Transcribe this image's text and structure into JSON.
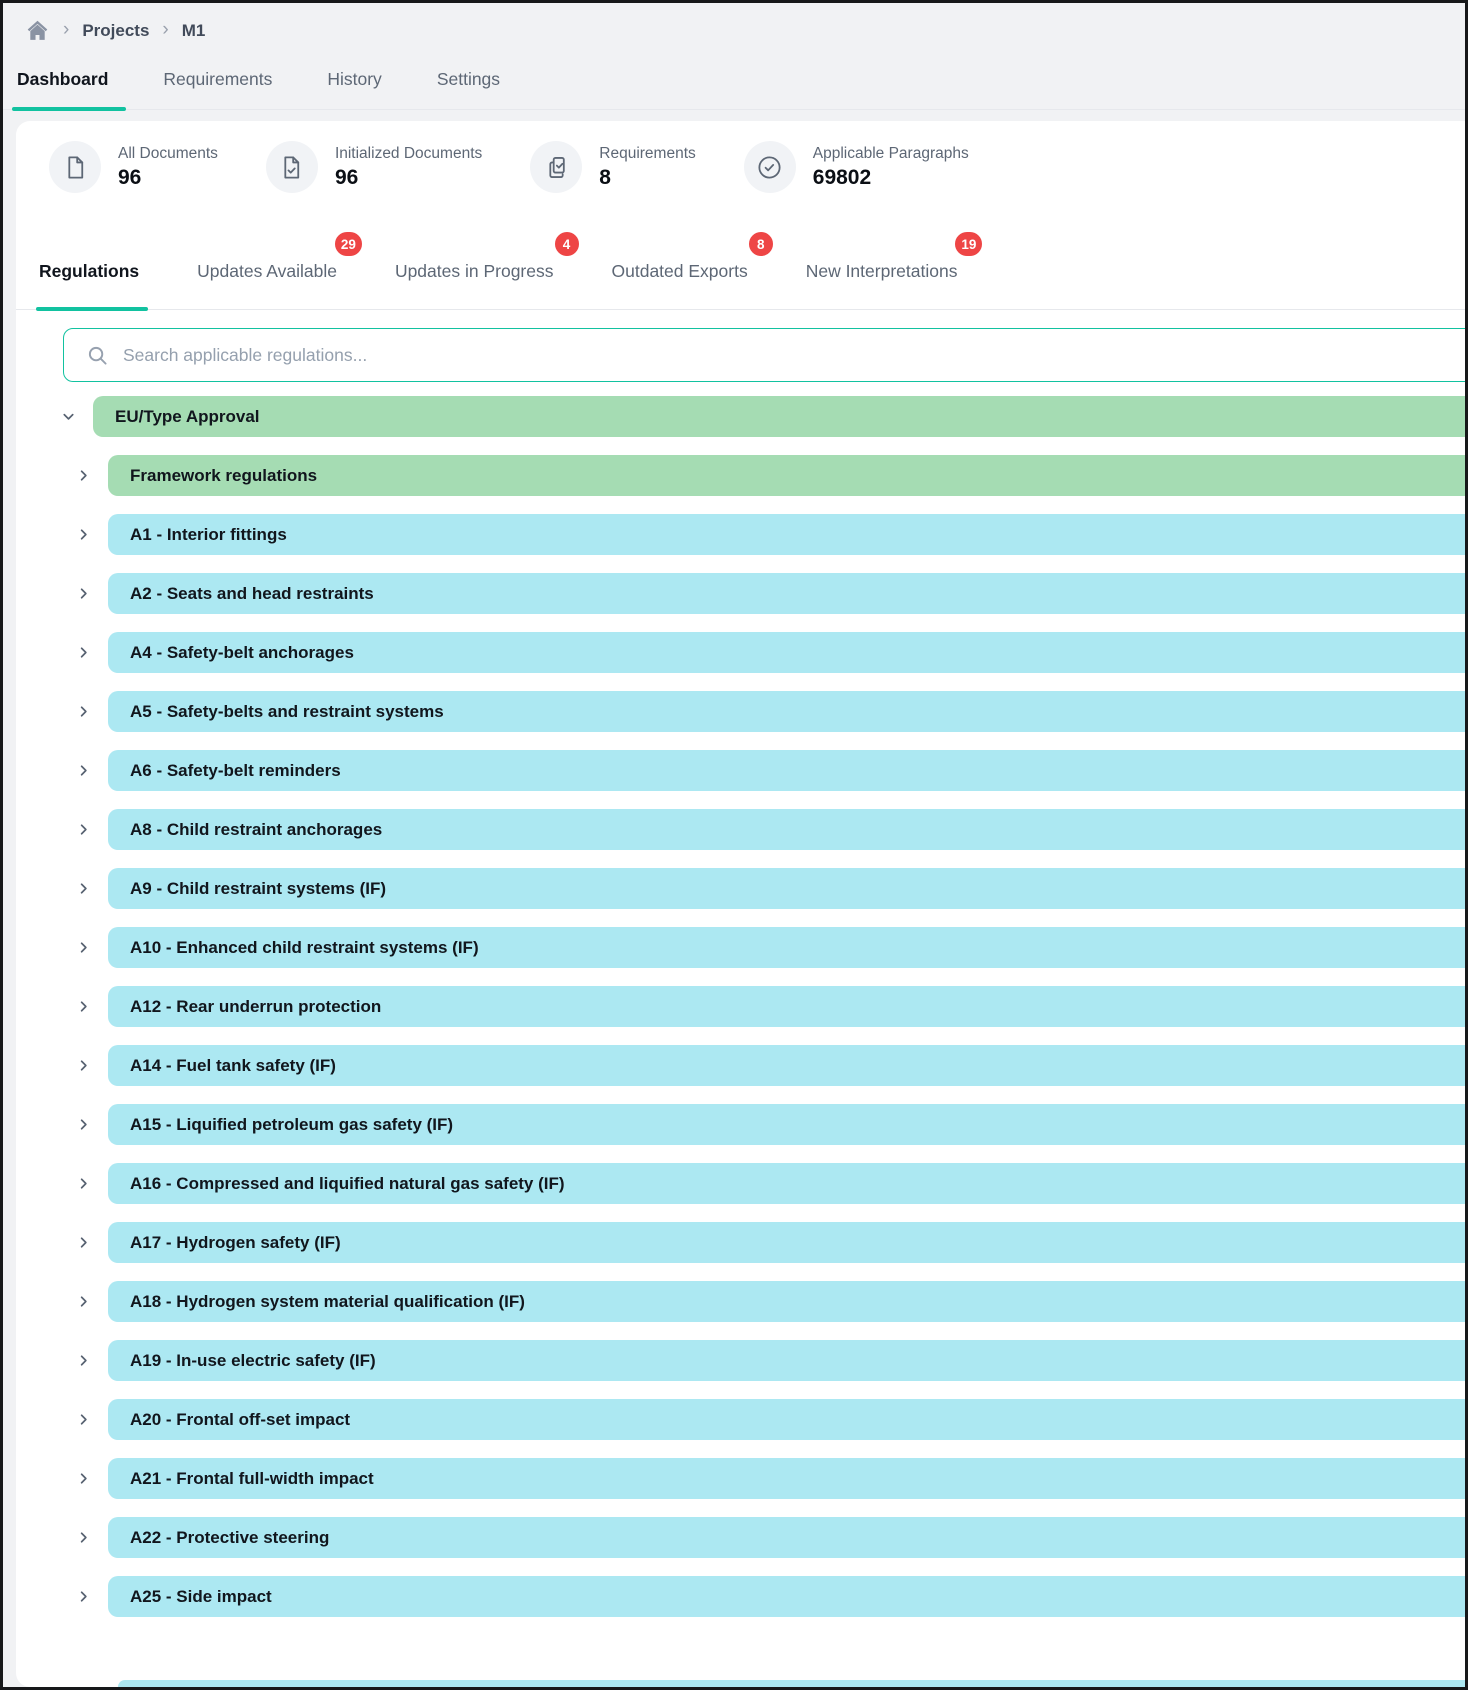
{
  "breadcrumb": {
    "home_icon": "home-icon",
    "items": [
      "Projects",
      "M1"
    ]
  },
  "main_tabs": [
    {
      "label": "Dashboard",
      "active": true
    },
    {
      "label": "Requirements",
      "active": false
    },
    {
      "label": "History",
      "active": false
    },
    {
      "label": "Settings",
      "active": false
    }
  ],
  "stats": [
    {
      "icon": "document-icon",
      "label": "All Documents",
      "value": "96"
    },
    {
      "icon": "document-check-icon",
      "label": "Initialized Documents",
      "value": "96"
    },
    {
      "icon": "copy-check-icon",
      "label": "Requirements",
      "value": "8"
    },
    {
      "icon": "circle-check-icon",
      "label": "Applicable Paragraphs",
      "value": "69802"
    }
  ],
  "sub_tabs": [
    {
      "label": "Regulations",
      "active": true,
      "badge": null
    },
    {
      "label": "Updates Available",
      "active": false,
      "badge": "29"
    },
    {
      "label": "Updates in Progress",
      "active": false,
      "badge": "4"
    },
    {
      "label": "Outdated Exports",
      "active": false,
      "badge": "8"
    },
    {
      "label": "New Interpretations",
      "active": false,
      "badge": "19"
    }
  ],
  "search": {
    "placeholder": "Search applicable regulations...",
    "value": ""
  },
  "tree": [
    {
      "label": "EU/Type Approval",
      "level": 0,
      "state": "expanded",
      "color": "green"
    },
    {
      "label": "Framework regulations",
      "level": 1,
      "state": "collapsed",
      "color": "green"
    },
    {
      "label": "A1 - Interior fittings",
      "level": 1,
      "state": "collapsed",
      "color": "blue"
    },
    {
      "label": "A2 - Seats and head restraints",
      "level": 1,
      "state": "collapsed",
      "color": "blue"
    },
    {
      "label": "A4 - Safety-belt anchorages",
      "level": 1,
      "state": "collapsed",
      "color": "blue"
    },
    {
      "label": "A5 - Safety-belts and restraint systems",
      "level": 1,
      "state": "collapsed",
      "color": "blue"
    },
    {
      "label": "A6 - Safety-belt reminders",
      "level": 1,
      "state": "collapsed",
      "color": "blue"
    },
    {
      "label": "A8 - Child restraint anchorages",
      "level": 1,
      "state": "collapsed",
      "color": "blue"
    },
    {
      "label": "A9 - Child restraint systems (IF)",
      "level": 1,
      "state": "collapsed",
      "color": "blue"
    },
    {
      "label": "A10 - Enhanced child restraint systems (IF)",
      "level": 1,
      "state": "collapsed",
      "color": "blue"
    },
    {
      "label": "A12 - Rear underrun protection",
      "level": 1,
      "state": "collapsed",
      "color": "blue"
    },
    {
      "label": "A14 - Fuel tank safety (IF)",
      "level": 1,
      "state": "collapsed",
      "color": "blue"
    },
    {
      "label": "A15 - Liquified petroleum gas safety (IF)",
      "level": 1,
      "state": "collapsed",
      "color": "blue"
    },
    {
      "label": "A16 - Compressed and liquified natural gas safety (IF)",
      "level": 1,
      "state": "collapsed",
      "color": "blue"
    },
    {
      "label": "A17 - Hydrogen safety (IF)",
      "level": 1,
      "state": "collapsed",
      "color": "blue"
    },
    {
      "label": "A18 - Hydrogen system material qualification (IF)",
      "level": 1,
      "state": "collapsed",
      "color": "blue"
    },
    {
      "label": "A19 - In-use electric safety (IF)",
      "level": 1,
      "state": "collapsed",
      "color": "blue"
    },
    {
      "label": "A20 - Frontal off-set impact",
      "level": 1,
      "state": "collapsed",
      "color": "blue"
    },
    {
      "label": "A21 - Frontal full-width impact",
      "level": 1,
      "state": "collapsed",
      "color": "blue"
    },
    {
      "label": "A22 - Protective steering",
      "level": 1,
      "state": "collapsed",
      "color": "blue"
    },
    {
      "label": "A25 - Side impact",
      "level": 1,
      "state": "collapsed",
      "color": "blue"
    }
  ],
  "colors": {
    "accent": "#12c2a0",
    "row_green": "#a5dcb3",
    "row_blue": "#ace8f2",
    "badge": "#ee4545",
    "page_bg": "#f1f2f4",
    "line": "#e6e8ec"
  }
}
